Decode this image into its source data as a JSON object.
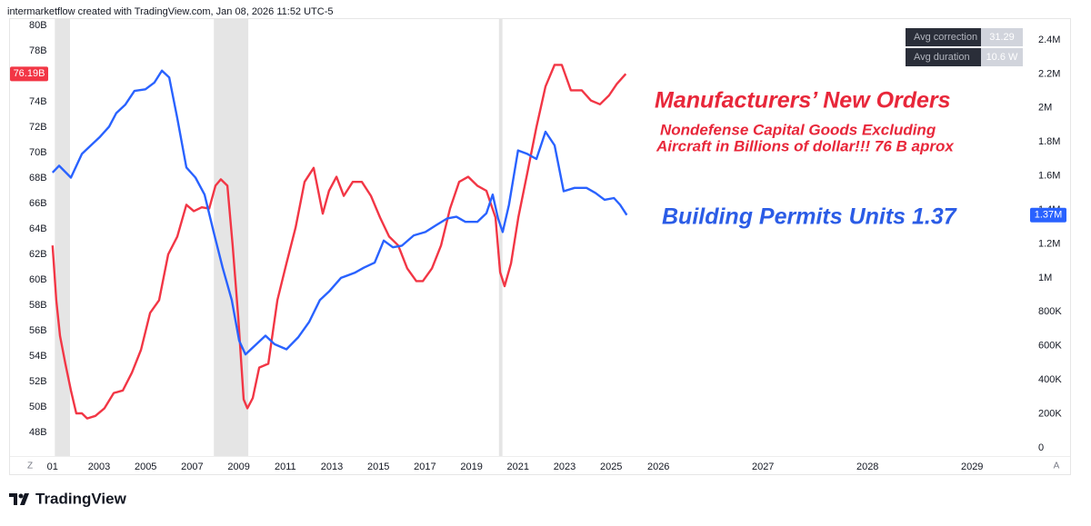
{
  "header": {
    "text": "intermarketflow created with TradingView.com, Jan 08, 2026 11:52 UTC-5"
  },
  "footer": {
    "brand": "TradingView",
    "left_button": "Z",
    "right_button": "A"
  },
  "stats": [
    {
      "label": "Avg correction",
      "value": "31.29"
    },
    {
      "label": "Avg duration",
      "value": "10.6 W"
    }
  ],
  "chart_data": {
    "type": "line",
    "annotations": [
      "Manufacturers’ New Orders",
      "Nondefense Capital Goods Excluding",
      "Aircraft in Billions of dollar!!! 76 B aprox",
      "Building Permits Units 1.37"
    ],
    "xlim": [
      2000.9,
      2029.6
    ],
    "xticks": [
      {
        "value": 2001,
        "label": "01"
      },
      2003,
      2005,
      2007,
      2009,
      2011,
      2013,
      2015,
      2017,
      2019,
      2021,
      2023,
      2025,
      2026,
      2027,
      2028,
      2029
    ],
    "ylim": [
      47,
      80.5
    ],
    "yticks": [
      {
        "value": 48,
        "label": "48B"
      },
      {
        "value": 50,
        "label": "50B"
      },
      {
        "value": 52,
        "label": "52B"
      },
      {
        "value": 54,
        "label": "54B"
      },
      {
        "value": 56,
        "label": "56B"
      },
      {
        "value": 58,
        "label": "58B"
      },
      {
        "value": 60,
        "label": "60B"
      },
      {
        "value": 62,
        "label": "62B"
      },
      {
        "value": 64,
        "label": "64B"
      },
      {
        "value": 66,
        "label": "66B"
      },
      {
        "value": 68,
        "label": "68B"
      },
      {
        "value": 70,
        "label": "70B"
      },
      {
        "value": 72,
        "label": "72B"
      },
      {
        "value": 74,
        "label": "74B"
      },
      {
        "value": 76,
        "label": "76B"
      },
      {
        "value": 78,
        "label": "78B"
      },
      {
        "value": 80,
        "label": "80B"
      }
    ],
    "y2lim": [
      16000,
      2523000
    ],
    "y2ticks": [
      0,
      {
        "value": 200000,
        "label": "200K"
      },
      {
        "value": 400000,
        "label": "400K"
      },
      {
        "value": 600000,
        "label": "600K"
      },
      {
        "value": 800000,
        "label": "800K"
      },
      {
        "value": 1000000,
        "label": "1M"
      },
      {
        "value": 1200000,
        "label": "1.2M"
      },
      {
        "value": 1400000,
        "label": "1.4M"
      },
      {
        "value": 1600000,
        "label": "1.6M"
      },
      {
        "value": 1800000,
        "label": "1.8M"
      },
      {
        "value": 2000000,
        "label": "2M"
      },
      {
        "value": 2200000,
        "label": "2.2M"
      },
      {
        "value": 2400000,
        "label": "2.4M"
      }
    ],
    "grid": false,
    "recessions": [
      [
        2001.1,
        2001.75
      ],
      [
        2007.93,
        2009.41
      ],
      [
        2020.18,
        2020.33
      ]
    ],
    "recession_color": "#e0e0e0",
    "series": [
      {
        "color": "#f23645",
        "axis": "y",
        "last_label": "76.19B",
        "x": [
          2001.0,
          2001.16,
          2001.32,
          2001.55,
          2001.79,
          2002.02,
          2002.26,
          2002.49,
          2002.84,
          2003.23,
          2003.63,
          2004.02,
          2004.41,
          2004.8,
          2005.19,
          2005.58,
          2005.97,
          2006.36,
          2006.75,
          2007.07,
          2007.41,
          2007.73,
          2008.0,
          2008.23,
          2008.51,
          2008.74,
          2008.98,
          2009.21,
          2009.37,
          2009.6,
          2009.88,
          2010.27,
          2010.66,
          2011.05,
          2011.44,
          2011.83,
          2012.22,
          2012.61,
          2012.88,
          2013.2,
          2013.51,
          2013.9,
          2014.29,
          2014.68,
          2015.07,
          2015.46,
          2015.85,
          2016.24,
          2016.63,
          2016.91,
          2017.3,
          2017.69,
          2018.08,
          2018.47,
          2018.86,
          2019.25,
          2019.64,
          2020.03,
          2020.23,
          2020.42,
          2020.7,
          2021.01,
          2021.4,
          2021.79,
          2022.18,
          2022.57,
          2022.88,
          2023.27,
          2023.74,
          2024.13,
          2024.52,
          2024.91,
          2025.12,
          2025.31
        ],
        "values": [
          62.7,
          58.4,
          55.6,
          53.4,
          51.3,
          49.5,
          49.5,
          49.1,
          49.3,
          49.9,
          51.1,
          51.3,
          52.7,
          54.5,
          57.4,
          58.4,
          62.0,
          63.4,
          65.9,
          65.4,
          65.7,
          65.6,
          67.4,
          67.9,
          67.4,
          62.7,
          57.0,
          50.6,
          49.9,
          50.7,
          53.1,
          53.4,
          58.4,
          61.3,
          64.1,
          67.7,
          68.8,
          65.2,
          67.0,
          68.1,
          66.6,
          67.7,
          67.7,
          66.6,
          64.9,
          63.4,
          62.7,
          60.9,
          59.9,
          59.9,
          60.9,
          62.7,
          65.6,
          67.7,
          68.1,
          67.4,
          67.0,
          64.9,
          60.6,
          59.5,
          61.3,
          64.9,
          68.4,
          72.0,
          75.2,
          76.9,
          76.9,
          74.9,
          74.9,
          74.1,
          73.8,
          74.5,
          75.4,
          76.19
        ]
      },
      {
        "color": "#2962ff",
        "axis": "y2",
        "last_label": "1.37M",
        "x": [
          2001.0,
          2001.28,
          2001.79,
          2002.26,
          2002.65,
          2003.04,
          2003.43,
          2003.74,
          2004.13,
          2004.52,
          2004.99,
          2005.38,
          2005.7,
          2006.01,
          2006.36,
          2006.75,
          2007.14,
          2007.53,
          2007.92,
          2008.31,
          2008.7,
          2009.02,
          2009.29,
          2009.68,
          2010.15,
          2010.54,
          2011.05,
          2011.55,
          2012.02,
          2012.49,
          2012.88,
          2013.39,
          2013.98,
          2014.37,
          2014.84,
          2015.23,
          2015.62,
          2016.01,
          2016.52,
          2017.02,
          2017.48,
          2017.96,
          2018.35,
          2018.74,
          2019.25,
          2019.64,
          2019.91,
          2020.14,
          2020.34,
          2020.61,
          2021.0,
          2021.4,
          2021.79,
          2022.18,
          2022.57,
          2022.96,
          2023.43,
          2023.94,
          2024.33,
          2024.72,
          2025.06,
          2025.19,
          2025.33
        ],
        "values": [
          1620000,
          1660000,
          1590000,
          1730000,
          1780000,
          1830000,
          1890000,
          1970000,
          2020000,
          2100000,
          2110000,
          2150000,
          2220000,
          2180000,
          1940000,
          1650000,
          1590000,
          1490000,
          1270000,
          1060000,
          870000,
          630000,
          550000,
          600000,
          660000,
          610000,
          580000,
          650000,
          740000,
          870000,
          920000,
          1000000,
          1030000,
          1060000,
          1090000,
          1220000,
          1180000,
          1190000,
          1250000,
          1270000,
          1310000,
          1350000,
          1360000,
          1330000,
          1330000,
          1380000,
          1490000,
          1350000,
          1270000,
          1430000,
          1750000,
          1730000,
          1700000,
          1860000,
          1780000,
          1510000,
          1530000,
          1530000,
          1500000,
          1460000,
          1470000,
          1430000,
          1370000
        ]
      }
    ]
  }
}
